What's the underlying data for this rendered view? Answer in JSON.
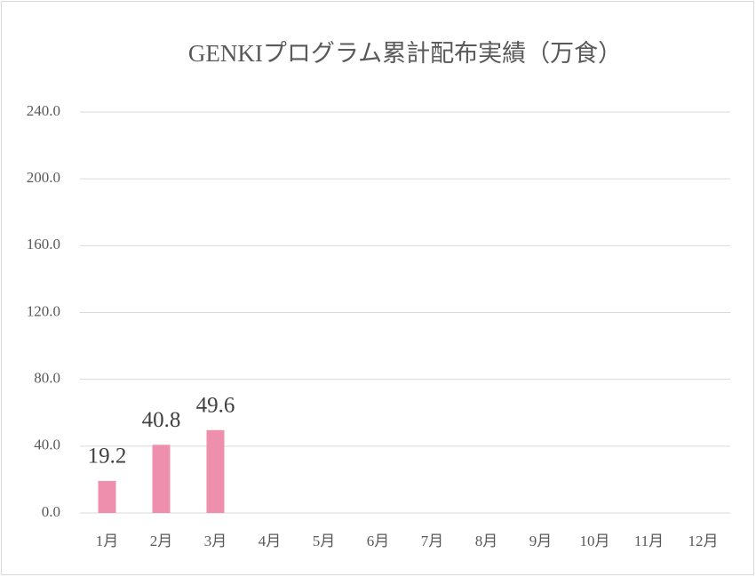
{
  "chart_data": {
    "type": "bar",
    "title": "GENKIプログラム累計配布実績（万食）",
    "categories": [
      "1月",
      "2月",
      "3月",
      "4月",
      "5月",
      "6月",
      "7月",
      "8月",
      "9月",
      "10月",
      "11月",
      "12月"
    ],
    "values": [
      19.2,
      40.8,
      49.6,
      null,
      null,
      null,
      null,
      null,
      null,
      null,
      null,
      null
    ],
    "color": "#ef8fae",
    "ylim": [
      0,
      240
    ],
    "yticks": [
      {
        "value": 0,
        "label": "0.0"
      },
      {
        "value": 40,
        "label": "40.0"
      },
      {
        "value": 80,
        "label": "80.0"
      },
      {
        "value": 120,
        "label": "120.0"
      },
      {
        "value": 160,
        "label": "160.0"
      },
      {
        "value": 200,
        "label": "200.0"
      },
      {
        "value": 240,
        "label": "240.0"
      }
    ],
    "grid": true
  }
}
